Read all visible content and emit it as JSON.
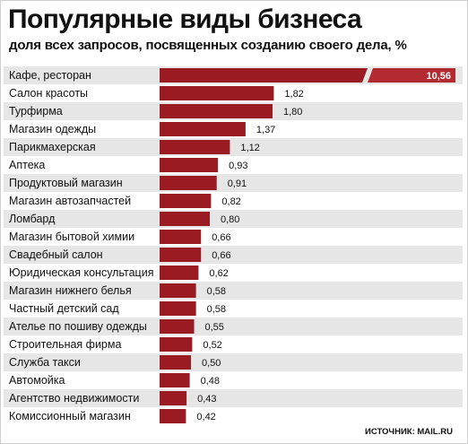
{
  "header": {
    "title": "Популярные виды бизнеса",
    "subtitle": "доля всех запросов, посвященных созданию своего дела, %"
  },
  "source": "ИСТОЧНИК: MAIL.RU",
  "colors": {
    "bar": "#9b1b22",
    "bar_highlight": "#b42a31",
    "row_shade": "#e6e6e6",
    "row_white": "#ffffff"
  },
  "chart_data": {
    "type": "bar",
    "orientation": "horizontal",
    "title": "Популярные виды бизнеса",
    "subtitle": "доля всех запросов, посвященных созданию своего дела, %",
    "axis_break": true,
    "categories": [
      "Кафе, ресторан",
      "Салон красоты",
      "Турфирма",
      "Магазин одежды",
      "Парикмахерская",
      "Аптека",
      "Продуктовый магазин",
      "Магазин автозапчастей",
      "Ломбард",
      "Магазин бытовой химии",
      "Свадебный салон",
      "Юридическая консультация",
      "Магазин нижнего белья",
      "Частный детский сад",
      "Ателье по пошиву одежды",
      "Строительная фирма",
      "Служба такси",
      "Автомойка",
      "Агентство недвижимости",
      "Комиссионный магазин"
    ],
    "value_labels": [
      "10,56",
      "1,82",
      "1,80",
      "1,37",
      "1,12",
      "0,93",
      "0,91",
      "0,82",
      "0,80",
      "0,66",
      "0,66",
      "0,62",
      "0,58",
      "0,58",
      "0,55",
      "0,52",
      "0,50",
      "0,48",
      "0,43",
      "0,42"
    ],
    "values": [
      10.56,
      1.82,
      1.8,
      1.37,
      1.12,
      0.93,
      0.91,
      0.82,
      0.8,
      0.66,
      0.66,
      0.62,
      0.58,
      0.58,
      0.55,
      0.52,
      0.5,
      0.48,
      0.43,
      0.42
    ]
  }
}
